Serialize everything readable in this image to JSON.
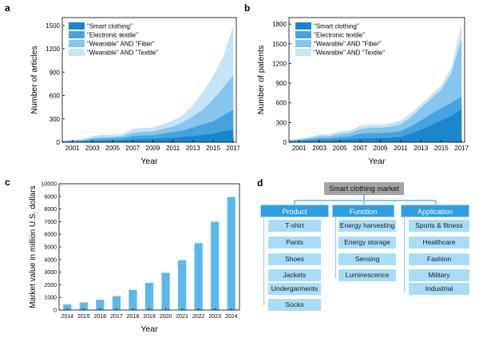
{
  "chart_data": [
    {
      "panel": "a",
      "type": "area",
      "stacked": false,
      "x": [
        2000,
        2001,
        2002,
        2003,
        2004,
        2005,
        2006,
        2007,
        2008,
        2009,
        2010,
        2011,
        2012,
        2013,
        2014,
        2015,
        2016,
        2017
      ],
      "series": [
        {
          "name": "\"Smart clothing\"",
          "color": "#1b86cc",
          "values": [
            5,
            8,
            10,
            18,
            20,
            22,
            25,
            35,
            40,
            40,
            50,
            55,
            70,
            80,
            95,
            110,
            140,
            160
          ]
        },
        {
          "name": "\"Electronic textile\"",
          "color": "#46a3df",
          "values": [
            10,
            15,
            20,
            40,
            45,
            50,
            55,
            80,
            85,
            90,
            110,
            130,
            150,
            190,
            230,
            270,
            340,
            420
          ]
        },
        {
          "name": "\"Wearable\" AND \"Fiber\"",
          "color": "#86c5ec",
          "values": [
            15,
            25,
            30,
            55,
            65,
            70,
            80,
            120,
            130,
            135,
            170,
            200,
            260,
            330,
            420,
            550,
            700,
            860
          ]
        },
        {
          "name": "\"Wearable\" AND \"Textile\"",
          "color": "#c4e4f7",
          "values": [
            20,
            30,
            45,
            80,
            95,
            100,
            110,
            170,
            185,
            190,
            230,
            280,
            350,
            480,
            650,
            850,
            1100,
            1500
          ]
        }
      ],
      "xticks": [
        "2001",
        "2003",
        "2005",
        "2007",
        "2009",
        "2011",
        "2013",
        "2015",
        "2017"
      ],
      "yticks": [
        "0",
        "300",
        "600",
        "900",
        "1200",
        "1500"
      ],
      "xlabel": "Year",
      "ylabel": "Number of articles",
      "xlim": [
        2000,
        2017.3
      ],
      "ylim": [
        0,
        1600
      ],
      "legend": "top-left"
    },
    {
      "panel": "b",
      "type": "area",
      "stacked": false,
      "x": [
        2000,
        2001,
        2002,
        2003,
        2004,
        2005,
        2006,
        2007,
        2008,
        2009,
        2010,
        2011,
        2012,
        2013,
        2014,
        2015,
        2016,
        2017
      ],
      "series": [
        {
          "name": "\"Smart clothing\"",
          "color": "#1b86cc",
          "values": [
            10,
            15,
            20,
            30,
            30,
            40,
            45,
            60,
            65,
            65,
            70,
            80,
            130,
            190,
            260,
            330,
            400,
            500
          ]
        },
        {
          "name": "\"Electronic textile\"",
          "color": "#46a3df",
          "values": [
            20,
            30,
            45,
            60,
            60,
            80,
            90,
            130,
            140,
            140,
            150,
            170,
            240,
            330,
            430,
            520,
            600,
            700
          ]
        },
        {
          "name": "\"Wearable\" AND \"Fiber\"",
          "color": "#86c5ec",
          "values": [
            30,
            40,
            60,
            90,
            90,
            130,
            140,
            200,
            220,
            220,
            240,
            270,
            380,
            520,
            660,
            800,
            1050,
            1580
          ]
        },
        {
          "name": "\"Wearable\" AND \"Textile\"",
          "color": "#c4e4f7",
          "values": [
            40,
            55,
            80,
            120,
            120,
            170,
            180,
            250,
            270,
            270,
            290,
            330,
            440,
            580,
            720,
            870,
            1150,
            1800
          ]
        }
      ],
      "xticks": [
        "2001",
        "2003",
        "2005",
        "2007",
        "2009",
        "2011",
        "2013",
        "2015",
        "2017"
      ],
      "yticks": [
        "0",
        "300",
        "600",
        "900",
        "1200",
        "1500",
        "1800"
      ],
      "xlabel": "Year",
      "ylabel": "Number of patents",
      "xlim": [
        2000,
        2017.3
      ],
      "ylim": [
        0,
        1900
      ],
      "legend": "top-left"
    },
    {
      "panel": "c",
      "type": "bar",
      "color": "#5cb8e8",
      "categories": [
        "2014",
        "2015",
        "2016",
        "2017",
        "2018",
        "2019",
        "2020",
        "2021",
        "2022",
        "2023",
        "2024"
      ],
      "values": [
        450,
        600,
        820,
        1100,
        1600,
        2150,
        2950,
        3950,
        5300,
        7000,
        8950
      ],
      "yticks": [
        "0",
        "1000",
        "2000",
        "3000",
        "4000",
        "5000",
        "6000",
        "7000",
        "8000",
        "9000",
        "10000"
      ],
      "xlabel": "Year",
      "ylabel": "Market value in million U.S. dollars",
      "ylim": [
        0,
        10000
      ]
    }
  ],
  "diagram": {
    "panel": "d",
    "root": "Smart clothing market",
    "categories": [
      {
        "label": "Product",
        "items": [
          "T-shirt",
          "Pants",
          "Shoes",
          "Jackets",
          "Undergarments",
          "Socks"
        ]
      },
      {
        "label": "Function",
        "items": [
          "Energy harvesting",
          "Energy storage",
          "Sensing",
          "Luminescence"
        ]
      },
      {
        "label": "Application",
        "items": [
          "Sports & fitness",
          "Healthcare",
          "Fashion",
          "Military",
          "Industrial"
        ]
      }
    ]
  },
  "panel_labels": {
    "a": "a",
    "b": "b",
    "c": "c",
    "d": "d"
  }
}
